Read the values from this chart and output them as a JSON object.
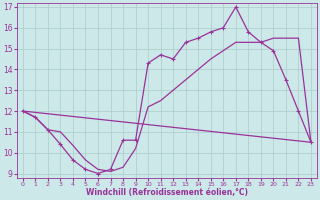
{
  "xlabel": "Windchill (Refroidissement éolien,°C)",
  "xlim": [
    -0.5,
    23.5
  ],
  "ylim": [
    8.8,
    17.2
  ],
  "yticks": [
    9,
    10,
    11,
    12,
    13,
    14,
    15,
    16,
    17
  ],
  "xticks": [
    0,
    1,
    2,
    3,
    4,
    5,
    6,
    7,
    8,
    9,
    10,
    11,
    12,
    13,
    14,
    15,
    16,
    17,
    18,
    19,
    20,
    21,
    22,
    23
  ],
  "bg_color": "#cce8e8",
  "grid_color": "#aacccc",
  "line_color": "#993399",
  "line1_x": [
    0,
    1,
    2,
    3,
    4,
    5,
    6,
    7,
    8,
    9,
    10,
    11,
    12,
    13,
    14,
    15,
    16,
    17,
    18,
    19,
    20,
    21,
    22,
    23
  ],
  "line1_y": [
    12,
    11.7,
    11.1,
    10.4,
    9.65,
    9.2,
    9.0,
    9.2,
    10.6,
    10.6,
    14.3,
    14.7,
    14.5,
    15.3,
    15.5,
    15.8,
    16.0,
    17.0,
    15.8,
    15.3,
    14.9,
    13.5,
    12.0,
    10.5
  ],
  "line2_x": [
    0,
    1,
    2,
    3,
    4,
    5,
    6,
    7,
    8,
    9,
    10,
    11,
    12,
    13,
    14,
    15,
    16,
    17,
    18,
    19,
    20,
    21,
    22,
    23
  ],
  "line2_y": [
    12,
    11.7,
    11.1,
    11.0,
    10.35,
    9.65,
    9.2,
    9.1,
    9.3,
    10.2,
    12.2,
    12.5,
    13.0,
    13.5,
    14.0,
    14.5,
    14.9,
    15.3,
    15.3,
    15.3,
    15.5,
    15.5,
    15.5,
    10.5
  ],
  "line3_x": [
    0,
    23
  ],
  "line3_y": [
    12,
    10.5
  ]
}
